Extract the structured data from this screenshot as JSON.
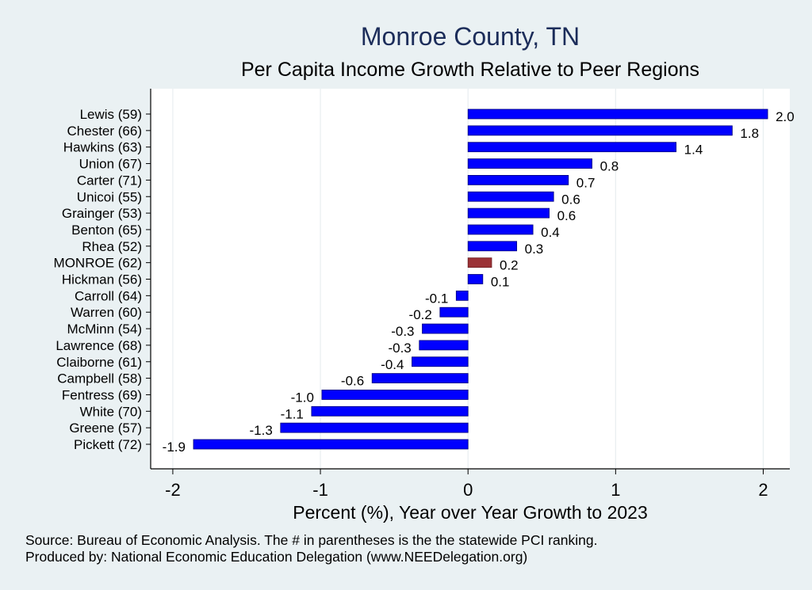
{
  "chart_data": {
    "type": "bar",
    "orientation": "horizontal",
    "title": "Monroe County, TN",
    "subtitle": "Per Capita Income Growth Relative to Peer Regions",
    "xlabel": "Percent (%), Year over Year Growth to 2023",
    "xlim": [
      -2.15,
      2.18
    ],
    "xticks": [
      -2,
      -1,
      0,
      1,
      2
    ],
    "xtick_labels": [
      "-2",
      "-1",
      "0",
      "1",
      "2"
    ],
    "grid": true,
    "categories": [
      "Lewis (59)",
      "Chester (66)",
      "Hawkins (63)",
      "Union (67)",
      "Carter (71)",
      "Unicoi (55)",
      "Grainger (53)",
      "Benton (65)",
      "Rhea (52)",
      "MONROE (62)",
      "Hickman (56)",
      "Carroll (64)",
      "Warren (60)",
      "McMinn (54)",
      "Lawrence (68)",
      "Claiborne (61)",
      "Campbell (58)",
      "Fentress (69)",
      "White (70)",
      "Greene (57)",
      "Pickett (72)"
    ],
    "values": [
      2.03,
      1.79,
      1.41,
      0.84,
      0.68,
      0.58,
      0.55,
      0.44,
      0.33,
      0.16,
      0.1,
      -0.08,
      -0.19,
      -0.31,
      -0.33,
      -0.38,
      -0.65,
      -0.99,
      -1.06,
      -1.27,
      -1.86
    ],
    "labels": [
      "2.0",
      "1.8",
      "1.4",
      "0.8",
      "0.7",
      "0.6",
      "0.6",
      "0.4",
      "0.3",
      "0.2",
      "0.1",
      "-0.1",
      "-0.2",
      "-0.3",
      "-0.3",
      "-0.4",
      "-0.6",
      "-1.0",
      "-1.1",
      "-1.3",
      "-1.9"
    ],
    "highlight_index": 9,
    "colors": {
      "bar": "#0000ff",
      "highlight": "#9b3236",
      "grid": "#ffffff",
      "axis": "#000000"
    }
  },
  "footer": {
    "source_line": "Source: Bureau of Economic Analysis. The # in parentheses is the the statewide PCI ranking.",
    "produced_line": "Produced by: National Economic Education Delegation (www.NEEDelegation.org)"
  }
}
